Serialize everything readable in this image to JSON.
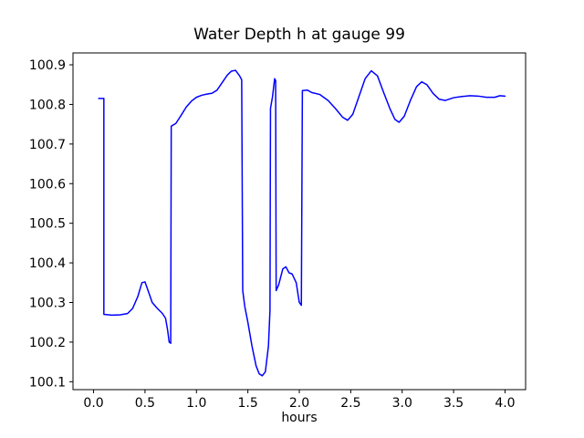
{
  "chart_data": {
    "type": "line",
    "title": "Water Depth h at gauge 99",
    "xlabel": "hours",
    "ylabel": "",
    "legend": "none",
    "grid": false,
    "line_color": "#0000ff",
    "xlim": [
      -0.2,
      4.2
    ],
    "ylim": [
      100.08,
      100.93
    ],
    "xticks": [
      0.0,
      0.5,
      1.0,
      1.5,
      2.0,
      2.5,
      3.0,
      3.5,
      4.0
    ],
    "xtick_labels": [
      "0.0",
      "0.5",
      "1.0",
      "1.5",
      "2.0",
      "2.5",
      "3.0",
      "3.5",
      "4.0"
    ],
    "yticks": [
      100.1,
      100.2,
      100.3,
      100.4,
      100.5,
      100.6,
      100.7,
      100.8,
      100.9
    ],
    "ytick_labels": [
      "100.1",
      "100.2",
      "100.3",
      "100.4",
      "100.5",
      "100.6",
      "100.7",
      "100.8",
      "100.9"
    ],
    "x": [
      0.05,
      0.1,
      0.1,
      0.18,
      0.26,
      0.33,
      0.38,
      0.43,
      0.47,
      0.5,
      0.53,
      0.57,
      0.62,
      0.67,
      0.7,
      0.72,
      0.735,
      0.75,
      0.755,
      0.8,
      0.85,
      0.9,
      0.95,
      1.0,
      1.05,
      1.1,
      1.15,
      1.2,
      1.25,
      1.3,
      1.34,
      1.38,
      1.42,
      1.44,
      1.45,
      1.47,
      1.5,
      1.54,
      1.58,
      1.61,
      1.64,
      1.67,
      1.7,
      1.715,
      1.72,
      1.74,
      1.76,
      1.77,
      1.775,
      1.8,
      1.84,
      1.87,
      1.9,
      1.93,
      1.97,
      2.0,
      2.02,
      2.03,
      2.08,
      2.12,
      2.2,
      2.28,
      2.35,
      2.42,
      2.47,
      2.52,
      2.58,
      2.64,
      2.7,
      2.76,
      2.82,
      2.88,
      2.93,
      2.97,
      3.02,
      3.08,
      3.14,
      3.19,
      3.24,
      3.3,
      3.36,
      3.42,
      3.5,
      3.58,
      3.66,
      3.74,
      3.82,
      3.9,
      3.95,
      4.0
    ],
    "y": [
      100.815,
      100.815,
      100.27,
      100.268,
      100.269,
      100.272,
      100.285,
      100.315,
      100.35,
      100.352,
      100.33,
      100.3,
      100.285,
      100.272,
      100.26,
      100.23,
      100.2,
      100.197,
      100.745,
      100.752,
      100.772,
      100.793,
      100.808,
      100.818,
      100.823,
      100.826,
      100.828,
      100.836,
      100.855,
      100.874,
      100.884,
      100.886,
      100.872,
      100.862,
      100.33,
      100.29,
      100.25,
      100.19,
      100.14,
      100.12,
      100.115,
      100.125,
      100.19,
      100.28,
      100.79,
      100.82,
      100.865,
      100.86,
      100.33,
      100.345,
      100.385,
      100.39,
      100.375,
      100.372,
      100.35,
      100.3,
      100.293,
      100.835,
      100.836,
      100.83,
      100.825,
      100.81,
      100.79,
      100.768,
      100.76,
      100.775,
      100.82,
      100.865,
      100.885,
      100.872,
      100.83,
      100.79,
      100.762,
      100.755,
      100.77,
      100.81,
      100.845,
      100.857,
      100.85,
      100.828,
      100.813,
      100.81,
      100.817,
      100.82,
      100.822,
      100.821,
      100.818,
      100.818,
      100.822,
      100.821
    ]
  }
}
